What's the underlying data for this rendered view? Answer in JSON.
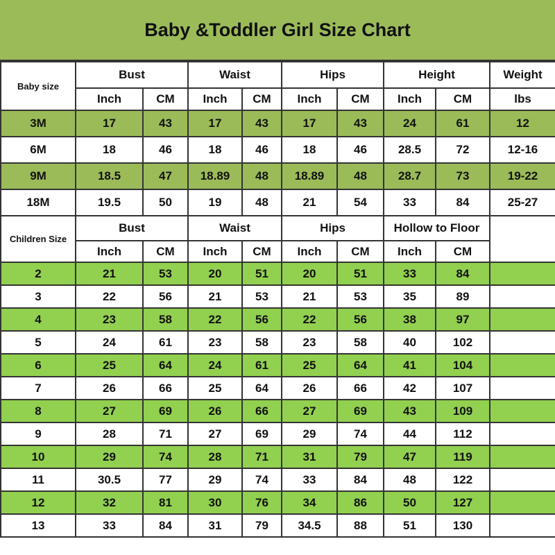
{
  "title": "Baby &Toddler Girl Size Chart",
  "colors": {
    "title_bg": "#9bbb59",
    "baby_row_highlight": "#9bbb59",
    "children_row_highlight": "#92d050"
  },
  "baby": {
    "size_label": "Baby size",
    "groups": [
      "Bust",
      "Waist",
      "Hips",
      "Height",
      "Weight"
    ],
    "subheaders": [
      "Inch",
      "CM",
      "Inch",
      "CM",
      "Inch",
      "CM",
      "Inch",
      "CM",
      "lbs"
    ],
    "rows": [
      [
        "3M",
        "17",
        "43",
        "17",
        "43",
        "17",
        "43",
        "24",
        "61",
        "12"
      ],
      [
        "6M",
        "18",
        "46",
        "18",
        "46",
        "18",
        "46",
        "28.5",
        "72",
        "12-16"
      ],
      [
        "9M",
        "18.5",
        "47",
        "18.89",
        "48",
        "18.89",
        "48",
        "28.7",
        "73",
        "19-22"
      ],
      [
        "18M",
        "19.5",
        "50",
        "19",
        "48",
        "21",
        "54",
        "33",
        "84",
        "25-27"
      ]
    ]
  },
  "children": {
    "size_label": "Children Size",
    "groups": [
      "Bust",
      "Waist",
      "Hips",
      "Hollow to Floor"
    ],
    "subheaders": [
      "Inch",
      "CM",
      "Inch",
      "CM",
      "Inch",
      "CM",
      "Inch",
      "CM"
    ],
    "rows": [
      [
        "2",
        "21",
        "53",
        "20",
        "51",
        "20",
        "51",
        "33",
        "84"
      ],
      [
        "3",
        "22",
        "56",
        "21",
        "53",
        "21",
        "53",
        "35",
        "89"
      ],
      [
        "4",
        "23",
        "58",
        "22",
        "56",
        "22",
        "56",
        "38",
        "97"
      ],
      [
        "5",
        "24",
        "61",
        "23",
        "58",
        "23",
        "58",
        "40",
        "102"
      ],
      [
        "6",
        "25",
        "64",
        "24",
        "61",
        "25",
        "64",
        "41",
        "104"
      ],
      [
        "7",
        "26",
        "66",
        "25",
        "64",
        "26",
        "66",
        "42",
        "107"
      ],
      [
        "8",
        "27",
        "69",
        "26",
        "66",
        "27",
        "69",
        "43",
        "109"
      ],
      [
        "9",
        "28",
        "71",
        "27",
        "69",
        "29",
        "74",
        "44",
        "112"
      ],
      [
        "10",
        "29",
        "74",
        "28",
        "71",
        "31",
        "79",
        "47",
        "119"
      ],
      [
        "11",
        "30.5",
        "77",
        "29",
        "74",
        "33",
        "84",
        "48",
        "122"
      ],
      [
        "12",
        "32",
        "81",
        "30",
        "76",
        "34",
        "86",
        "50",
        "127"
      ],
      [
        "13",
        "33",
        "84",
        "31",
        "79",
        "34.5",
        "88",
        "51",
        "130"
      ]
    ]
  }
}
